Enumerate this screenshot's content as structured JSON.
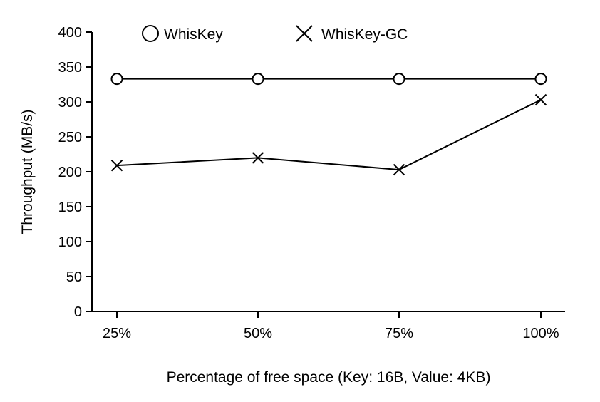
{
  "chart_data": {
    "type": "line",
    "categories": [
      "25%",
      "50%",
      "75%",
      "100%"
    ],
    "series": [
      {
        "name": "WhisKey",
        "marker": "circle",
        "values": [
          333,
          333,
          333,
          333
        ]
      },
      {
        "name": "WhisKey-GC",
        "marker": "cross",
        "values": [
          209,
          220,
          203,
          303
        ]
      }
    ],
    "title": "",
    "xlabel": "Percentage of free space (Key: 16B, Value: 4KB)",
    "ylabel": "Throughput (MB/s)",
    "ylim": [
      0,
      400
    ],
    "yticks": [
      0,
      50,
      100,
      150,
      200,
      250,
      300,
      350,
      400
    ],
    "grid": false,
    "legend_position": "top",
    "line_color": "#000000"
  }
}
